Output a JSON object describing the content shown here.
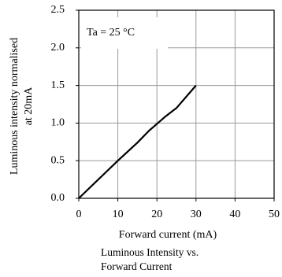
{
  "chart_data": {
    "type": "line",
    "xlabel": "Forward current (mA)",
    "ylabel_lines": [
      "Luminous intensity normalised",
      "at 20mA"
    ],
    "caption_lines": [
      "Luminous Intensity vs.",
      "Forward Current"
    ],
    "annotation": "Ta = 25 °C",
    "xlim": [
      0,
      50
    ],
    "ylim": [
      0,
      2.5
    ],
    "x_ticks": [
      0,
      10,
      20,
      30,
      40,
      50
    ],
    "y_ticks": [
      0.0,
      0.5,
      1.0,
      1.5,
      2.0,
      2.5
    ],
    "x_tick_labels": [
      "0",
      "10",
      "20",
      "30",
      "40",
      "50"
    ],
    "y_tick_labels": [
      "0.0",
      "0.5",
      "1.0",
      "1.5",
      "2.0",
      "2.5"
    ],
    "grid": true,
    "series": [
      {
        "x": [
          0,
          5,
          10,
          15,
          18,
          20,
          22,
          25,
          30
        ],
        "y": [
          0,
          0.25,
          0.5,
          0.74,
          0.9,
          0.99,
          1.08,
          1.2,
          1.5
        ],
        "color": "#000000"
      }
    ]
  }
}
